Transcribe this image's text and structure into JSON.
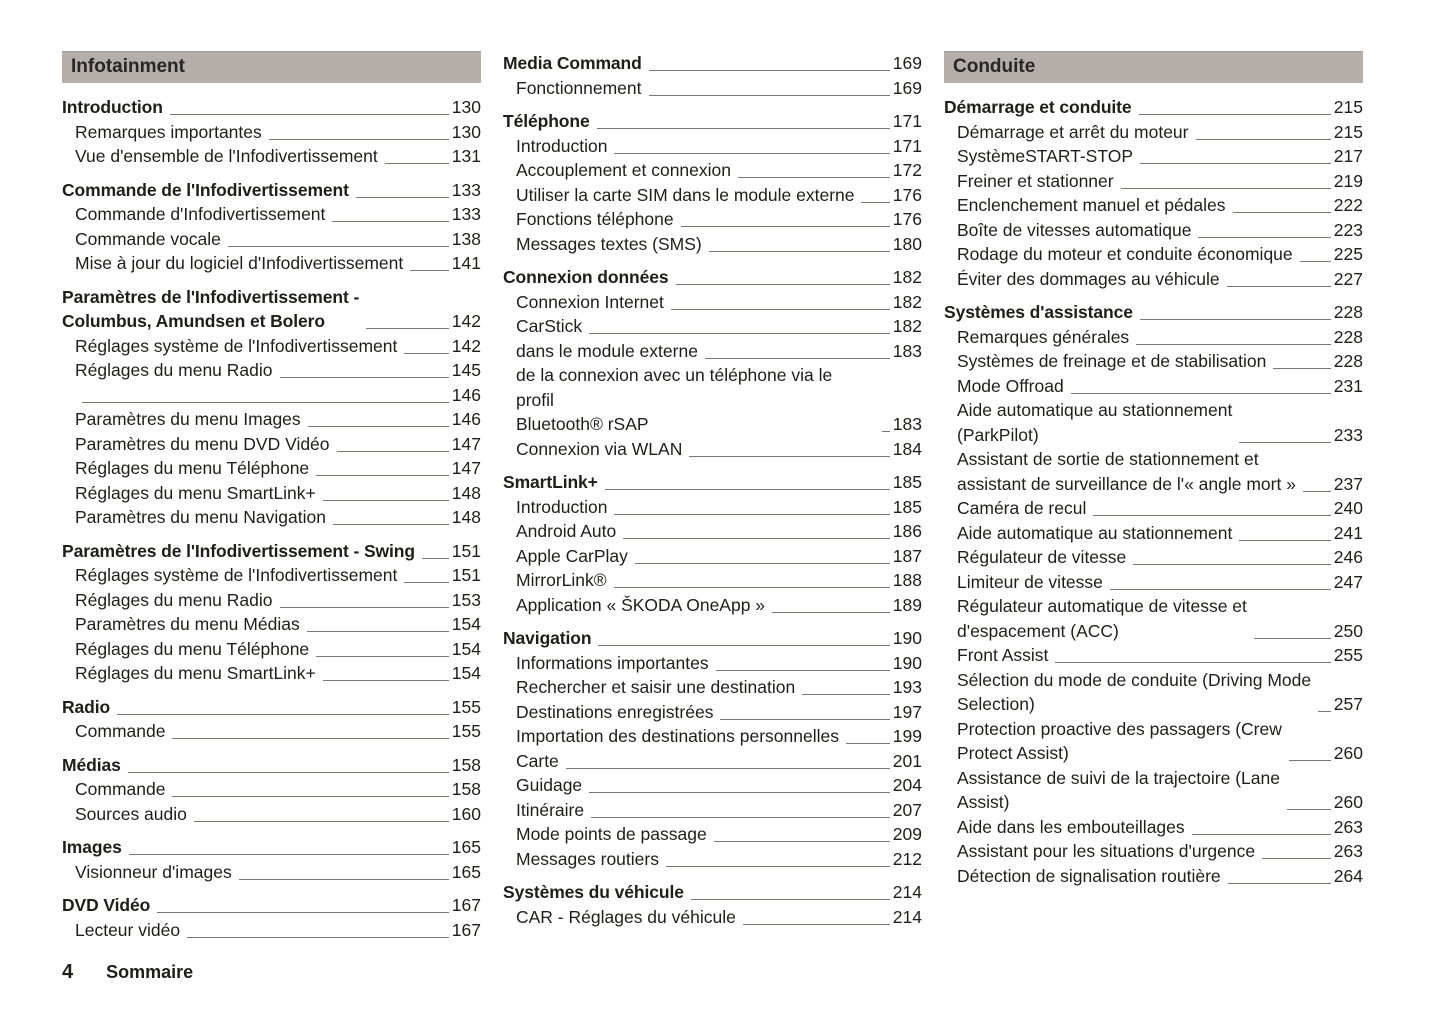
{
  "colors": {
    "header_bg": "#b5afac",
    "text": "#1e1e1c",
    "leader": "#7b7874"
  },
  "footer": {
    "page_number": "4",
    "label": "Sommaire"
  },
  "columns": [
    {
      "header": "Infotainment",
      "groups": [
        {
          "title": "Introduction",
          "page": "130",
          "items": [
            {
              "label": "Remarques importantes",
              "page": "130"
            },
            {
              "label": "Vue d'ensemble de l'Infodivertissement",
              "page": "131"
            }
          ]
        },
        {
          "title": "Commande de l'Infodivertissement",
          "page": "133",
          "items": [
            {
              "label": "Commande d'Infodivertissement",
              "page": "133"
            },
            {
              "label": "Commande vocale",
              "page": "138"
            },
            {
              "label": "Mise à jour du logiciel d'Infodivertissement",
              "page": "141"
            }
          ]
        },
        {
          "title": "Paramètres de l'Infodivertissement -\nColumbus, Amundsen et Bolero",
          "page": "142",
          "items": [
            {
              "label": "Réglages système de l'Infodivertissement",
              "page": "142"
            },
            {
              "label": "Réglages du menu Radio",
              "page": "145"
            },
            {
              "label": "",
              "page": "146"
            },
            {
              "label": "Paramètres du menu Images",
              "page": "146"
            },
            {
              "label": "Paramètres du menu DVD Vidéo",
              "page": "147"
            },
            {
              "label": "Réglages du menu Téléphone",
              "page": "147"
            },
            {
              "label": "Réglages du menu SmartLink+",
              "page": "148"
            },
            {
              "label": "Paramètres du menu Navigation",
              "page": "148"
            }
          ]
        },
        {
          "title": "Paramètres de l'Infodivertissement - Swing",
          "page": "151",
          "items": [
            {
              "label": "Réglages système de l'Infodivertissement",
              "page": "151"
            },
            {
              "label": "Réglages du menu Radio",
              "page": "153"
            },
            {
              "label": "Paramètres du menu Médias",
              "page": "154"
            },
            {
              "label": "Réglages du menu Téléphone",
              "page": "154"
            },
            {
              "label": "Réglages du menu SmartLink+",
              "page": "154"
            }
          ]
        },
        {
          "title": "Radio",
          "page": "155",
          "items": [
            {
              "label": "Commande",
              "page": "155"
            }
          ]
        },
        {
          "title": "Médias",
          "page": "158",
          "items": [
            {
              "label": "Commande",
              "page": "158"
            },
            {
              "label": "Sources audio",
              "page": "160"
            }
          ]
        },
        {
          "title": "Images",
          "page": "165",
          "items": [
            {
              "label": "Visionneur d'images",
              "page": "165"
            }
          ]
        },
        {
          "title": "DVD Vidéo",
          "page": "167",
          "items": [
            {
              "label": "Lecteur vidéo",
              "page": "167"
            }
          ]
        }
      ]
    },
    {
      "header": null,
      "groups": [
        {
          "title": "Media Command",
          "page": "169",
          "items": [
            {
              "label": "Fonctionnement",
              "page": "169"
            }
          ]
        },
        {
          "title": "Téléphone",
          "page": "171",
          "items": [
            {
              "label": "Introduction",
              "page": "171"
            },
            {
              "label": "Accouplement et connexion",
              "page": "172"
            },
            {
              "label": "Utiliser la carte SIM dans le module externe",
              "page": "176"
            },
            {
              "label": "Fonctions téléphone",
              "page": "176"
            },
            {
              "label": "Messages textes (SMS)",
              "page": "180"
            }
          ]
        },
        {
          "title": "Connexion données",
          "page": "182",
          "items": [
            {
              "label": "Connexion Internet",
              "page": "182"
            },
            {
              "label": "CarStick",
              "page": "182"
            },
            {
              "label": "dans le module externe",
              "page": "183"
            },
            {
              "label": "de la connexion avec un téléphone via le profil\nBluetooth® rSAP",
              "page": "183"
            },
            {
              "label": "Connexion via WLAN",
              "page": "184"
            }
          ]
        },
        {
          "title": "SmartLink+",
          "page": "185",
          "items": [
            {
              "label": "Introduction",
              "page": "185"
            },
            {
              "label": "Android Auto",
              "page": "186"
            },
            {
              "label": "Apple CarPlay",
              "page": "187"
            },
            {
              "label": "MirrorLink®",
              "page": "188"
            },
            {
              "label": "Application « ŠKODA OneApp »",
              "page": "189"
            }
          ]
        },
        {
          "title": "Navigation",
          "page": "190",
          "items": [
            {
              "label": "Informations importantes",
              "page": "190"
            },
            {
              "label": "Rechercher et saisir une destination",
              "page": "193"
            },
            {
              "label": "Destinations enregistrées",
              "page": "197"
            },
            {
              "label": "Importation des destinations personnelles",
              "page": "199"
            },
            {
              "label": "Carte",
              "page": "201"
            },
            {
              "label": "Guidage",
              "page": "204"
            },
            {
              "label": "Itinéraire",
              "page": "207"
            },
            {
              "label": "Mode points de passage",
              "page": "209"
            },
            {
              "label": "Messages routiers",
              "page": "212"
            }
          ]
        },
        {
          "title": "Systèmes du véhicule",
          "page": "214",
          "items": [
            {
              "label": "CAR - Réglages du véhicule",
              "page": "214"
            }
          ]
        }
      ]
    },
    {
      "header": "Conduite",
      "groups": [
        {
          "title": "Démarrage et conduite",
          "page": "215",
          "items": [
            {
              "label": "Démarrage et arrêt du moteur",
              "page": "215"
            },
            {
              "label": "SystèmeSTART-STOP",
              "page": "217"
            },
            {
              "label": "Freiner et stationner",
              "page": "219"
            },
            {
              "label": "Enclenchement manuel et pédales",
              "page": "222"
            },
            {
              "label": "Boîte de vitesses automatique",
              "page": "223"
            },
            {
              "label": "Rodage du moteur et conduite économique",
              "page": "225"
            },
            {
              "label": "Éviter des dommages au véhicule",
              "page": "227"
            }
          ]
        },
        {
          "title": "Systèmes d'assistance",
          "page": "228",
          "items": [
            {
              "label": "Remarques générales",
              "page": "228"
            },
            {
              "label": "Systèmes de freinage et de stabilisation",
              "page": "228"
            },
            {
              "label": "Mode Offroad",
              "page": "231"
            },
            {
              "label": "Aide automatique au stationnement\n(ParkPilot)",
              "page": "233"
            },
            {
              "label": "Assistant de sortie de stationnement et\nassistant de surveillance de l'« angle mort »",
              "page": "237"
            },
            {
              "label": "Caméra de recul",
              "page": "240"
            },
            {
              "label": "Aide automatique au stationnement",
              "page": "241"
            },
            {
              "label": "Régulateur de vitesse",
              "page": "246"
            },
            {
              "label": "Limiteur de vitesse",
              "page": "247"
            },
            {
              "label": "Régulateur automatique de vitesse et\nd'espacement (ACC)",
              "page": "250"
            },
            {
              "label": "Front Assist",
              "page": "255"
            },
            {
              "label": "Sélection du mode de conduite (Driving Mode\nSelection)",
              "page": "257"
            },
            {
              "label": "Protection proactive des passagers (Crew\nProtect Assist)",
              "page": "260"
            },
            {
              "label": "Assistance de suivi de la trajectoire (Lane\nAssist)",
              "page": "260"
            },
            {
              "label": "Aide dans les embouteillages",
              "page": "263"
            },
            {
              "label": "Assistant pour les situations d'urgence",
              "page": "263"
            },
            {
              "label": "Détection de signalisation routière",
              "page": "264"
            }
          ]
        }
      ]
    }
  ]
}
